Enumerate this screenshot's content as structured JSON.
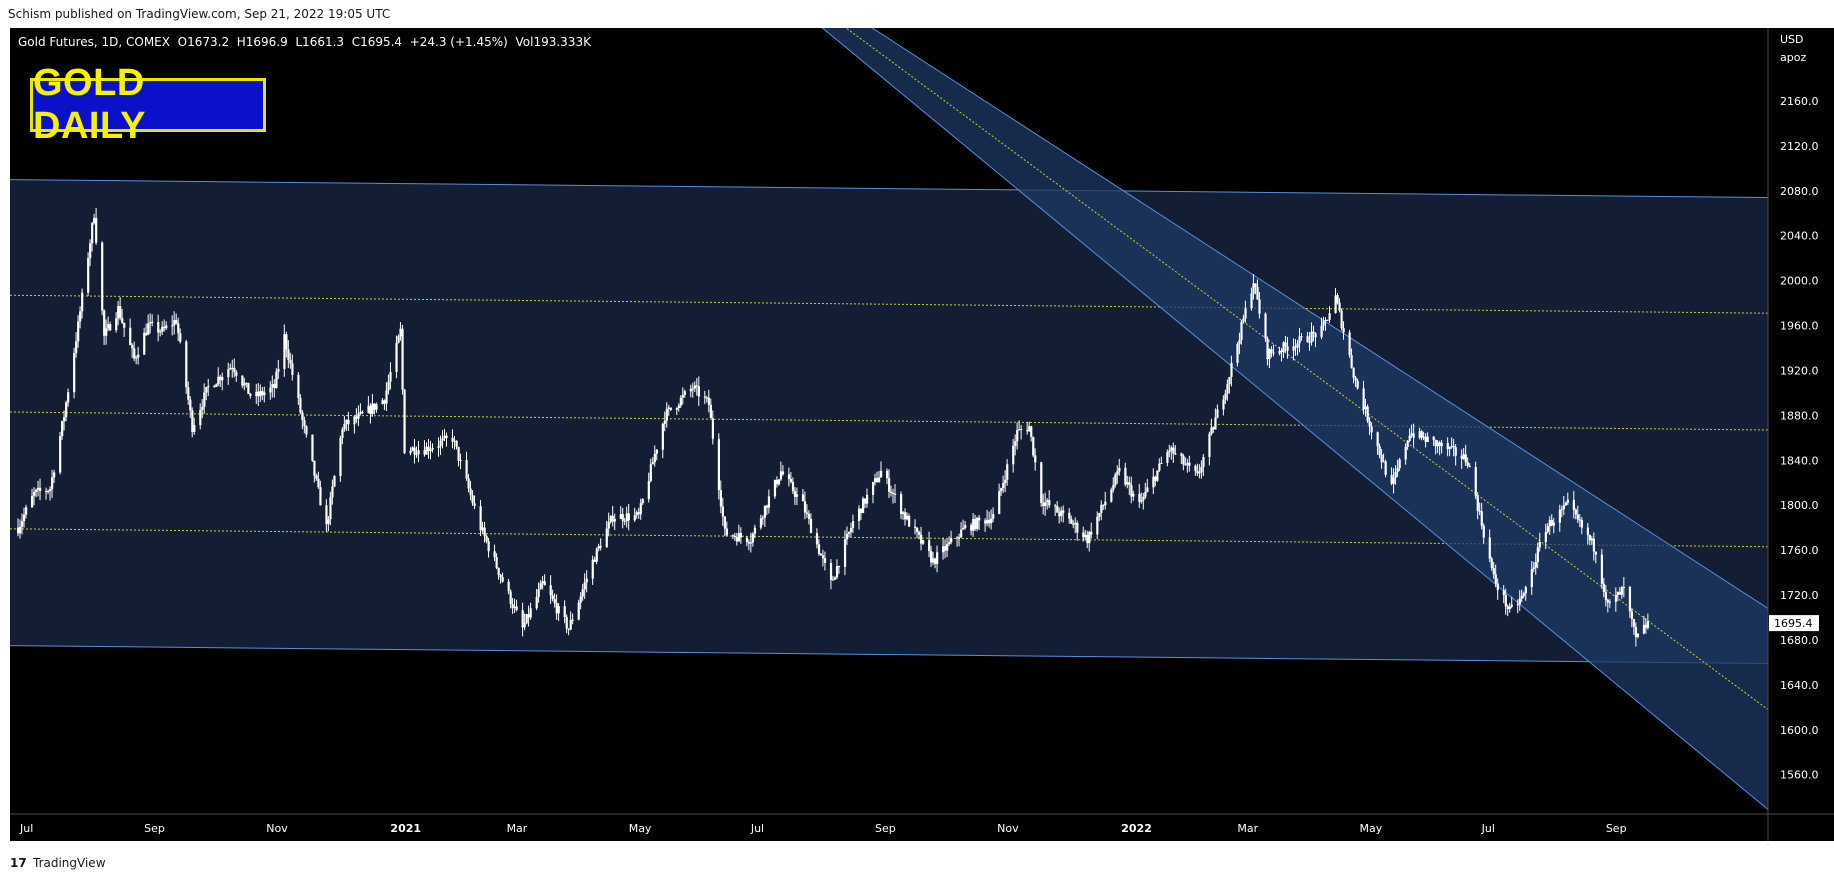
{
  "header": {
    "published_text": "Schism published on TradingView.com, Sep 21, 2022 19:05 UTC"
  },
  "legend": {
    "symbol": "Gold Futures, 1D, COMEX",
    "open": "O1673.2",
    "high": "H1696.9",
    "low": "L1661.3",
    "close": "C1695.4",
    "change": "+24.3 (+1.45%)",
    "volume": "Vol193.333K"
  },
  "badge": {
    "text": "GOLD DAILY"
  },
  "axis": {
    "currency": "USD",
    "unit": "apoz",
    "last_price_label": "1695.4"
  },
  "footer": {
    "brand": "TradingView",
    "logo": "17"
  },
  "colors": {
    "background": "#000000",
    "candle": "#ffffff",
    "channel_fill": "#1e3a64",
    "channel_line": "#5a8ddb",
    "midline": "#d6c93a",
    "badge_bg": "#0b10c9",
    "badge_text": "#f5f200"
  },
  "chart_data": {
    "type": "line",
    "x_axis_type": "date",
    "xlim": [
      "2020-06-25",
      "2022-11-20"
    ],
    "ylim": [
      1525,
      2225
    ],
    "y_ticks": [
      1560.0,
      1600.0,
      1640.0,
      1680.0,
      1720.0,
      1760.0,
      1800.0,
      1840.0,
      1880.0,
      1920.0,
      1960.0,
      2000.0,
      2040.0,
      2080.0,
      2120.0,
      2160.0
    ],
    "x_ticks": [
      {
        "label": "Jul",
        "date": "2020-07-01"
      },
      {
        "label": "Sep",
        "date": "2020-09-01"
      },
      {
        "label": "Nov",
        "date": "2020-11-01"
      },
      {
        "label": "2021",
        "date": "2021-01-01"
      },
      {
        "label": "Mar",
        "date": "2021-03-01"
      },
      {
        "label": "May",
        "date": "2021-05-01"
      },
      {
        "label": "Jul",
        "date": "2021-07-01"
      },
      {
        "label": "Sep",
        "date": "2021-09-01"
      },
      {
        "label": "Nov",
        "date": "2021-11-01"
      },
      {
        "label": "2022",
        "date": "2022-01-01"
      },
      {
        "label": "Mar",
        "date": "2022-03-01"
      },
      {
        "label": "May",
        "date": "2022-05-01"
      },
      {
        "label": "Jul",
        "date": "2022-07-01"
      },
      {
        "label": "Sep",
        "date": "2022-09-01"
      }
    ],
    "series": [
      {
        "x": [
          "2020-06-29",
          "2020-07-07",
          "2020-07-15",
          "2020-07-22",
          "2020-07-29",
          "2020-08-06",
          "2020-08-11",
          "2020-08-18",
          "2020-08-26",
          "2020-09-02",
          "2020-09-09",
          "2020-09-16",
          "2020-09-24",
          "2020-10-02",
          "2020-10-14",
          "2020-10-24",
          "2020-11-04",
          "2020-11-09",
          "2020-11-18",
          "2020-11-30",
          "2020-12-08",
          "2020-12-18",
          "2020-12-29",
          "2021-01-06",
          "2021-01-08",
          "2021-01-18",
          "2021-02-01",
          "2021-02-15",
          "2021-03-08",
          "2021-03-18",
          "2021-03-31",
          "2021-04-12",
          "2021-04-22",
          "2021-05-05",
          "2021-05-18",
          "2021-06-01",
          "2021-06-09",
          "2021-06-17",
          "2021-06-30",
          "2021-07-15",
          "2021-07-26",
          "2021-08-09",
          "2021-08-20",
          "2021-09-03",
          "2021-09-15",
          "2021-09-29",
          "2021-10-15",
          "2021-10-29",
          "2021-11-10",
          "2021-11-16",
          "2021-11-22",
          "2021-12-07",
          "2021-12-15",
          "2021-12-31",
          "2022-01-10",
          "2022-01-25",
          "2022-02-08",
          "2022-02-23",
          "2022-03-08",
          "2022-03-15",
          "2022-03-30",
          "2022-04-11",
          "2022-04-18",
          "2022-04-28",
          "2022-05-16",
          "2022-05-25",
          "2022-06-13",
          "2022-06-23",
          "2022-07-06",
          "2022-07-14",
          "2022-07-21",
          "2022-08-01",
          "2022-08-12",
          "2022-08-26",
          "2022-09-01",
          "2022-09-09",
          "2022-09-15",
          "2022-09-21"
        ],
        "values": [
          1780,
          1810,
          1815,
          1880,
          1960,
          2060,
          1950,
          1975,
          1930,
          1960,
          1955,
          1965,
          1870,
          1905,
          1925,
          1895,
          1905,
          1950,
          1875,
          1780,
          1870,
          1880,
          1895,
          1955,
          1850,
          1850,
          1860,
          1780,
          1690,
          1730,
          1690,
          1750,
          1790,
          1790,
          1880,
          1905,
          1890,
          1775,
          1770,
          1830,
          1800,
          1730,
          1785,
          1830,
          1790,
          1750,
          1780,
          1790,
          1865,
          1870,
          1805,
          1785,
          1770,
          1830,
          1800,
          1850,
          1825,
          1910,
          2000,
          1935,
          1945,
          1955,
          1985,
          1910,
          1815,
          1865,
          1850,
          1840,
          1735,
          1705,
          1720,
          1780,
          1800,
          1760,
          1710,
          1725,
          1680,
          1695
        ]
      }
    ],
    "channels": [
      {
        "name": "horizontal",
        "upper": [
          {
            "x": "2020-06-25",
            "y": 2090
          },
          {
            "x": "2022-11-20",
            "y": 2074
          }
        ],
        "lower": [
          {
            "x": "2020-06-25",
            "y": 1675
          },
          {
            "x": "2022-11-20",
            "y": 1659
          }
        ],
        "levels": [
          {
            "x": "2020-06-25",
            "y": 1987,
            "x2": "2022-11-20",
            "y2": 1971
          },
          {
            "x": "2020-06-25",
            "y": 1883,
            "x2": "2022-11-20",
            "y2": 1867
          },
          {
            "x": "2020-06-25",
            "y": 1779,
            "x2": "2022-11-20",
            "y2": 1763
          }
        ]
      },
      {
        "name": "descending",
        "upper": [
          {
            "x": "2021-08-21",
            "y": 2235
          },
          {
            "x": "2022-11-20",
            "y": 1708
          }
        ],
        "lower": [
          {
            "x": "2021-07-29",
            "y": 2235
          },
          {
            "x": "2022-11-20",
            "y": 1529
          }
        ],
        "midline": [
          {
            "x": "2021-08-09",
            "y": 2235
          },
          {
            "x": "2022-11-20",
            "y": 1618
          }
        ]
      }
    ]
  }
}
